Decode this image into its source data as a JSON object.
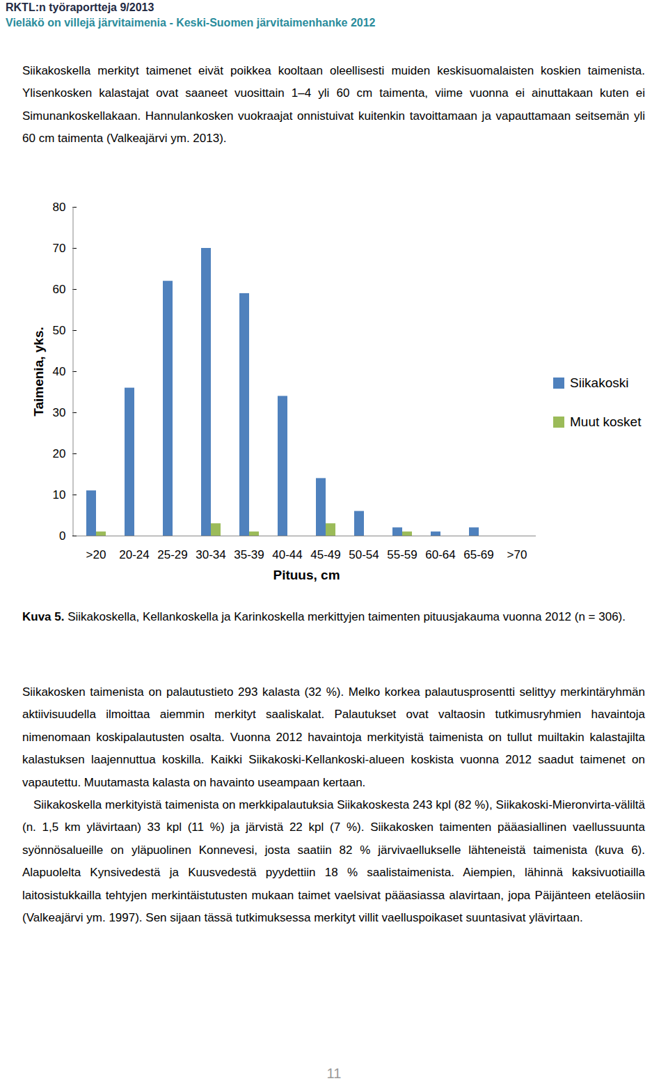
{
  "header": {
    "series": "RKTL:n työraportteja 9/2013",
    "title": "Vieläkö on villejä järvitaimenia - Keski-Suomen järvitaimenhanke 2012"
  },
  "paragraphs_before": [
    "Siikakoskella merkityt taimenet eivät poikkea kooltaan oleellisesti muiden keskisuomalaisten koskien taimenista. Ylisenkosken kalastajat ovat saaneet vuosittain 1–4 yli 60 cm taimenta, viime vuonna ei ainuttakaan kuten ei Simunankoskellakaan. Hannulankosken vuokraajat onnistuivat kuitenkin tavoittamaan ja vapauttamaan seitsemän yli 60 cm taimenta (Valkeajärvi ym. 2013)."
  ],
  "chart_data": {
    "type": "bar",
    "categories": [
      ">20",
      "20-24",
      "25-29",
      "30-34",
      "35-39",
      "40-44",
      "45-49",
      "50-54",
      "55-59",
      "60-64",
      "65-69",
      ">70"
    ],
    "series": [
      {
        "name": "Siikakoski",
        "color": "#4f81bd",
        "values": [
          11,
          36,
          62,
          70,
          59,
          34,
          14,
          6,
          2,
          1,
          2,
          0
        ]
      },
      {
        "name": "Muut kosket",
        "color": "#9bbb59",
        "values": [
          1,
          0,
          0,
          3,
          1,
          0,
          3,
          0,
          1,
          0,
          0,
          0
        ]
      }
    ],
    "x_label": "Pituus, cm",
    "y_label": "Taimenia, yks.",
    "ylim": [
      0,
      80
    ],
    "yticks": [
      0,
      10,
      20,
      30,
      40,
      50,
      60,
      70,
      80
    ],
    "grid": false,
    "legend": "right"
  },
  "caption": {
    "label": "Kuva 5.",
    "text": "Siikakoskella, Kellankoskella ja Karinkoskella merkittyjen taimenten pituusjakauma vuonna 2012 (n = 306)."
  },
  "paragraphs_after": [
    "Siikakosken taimenista on palautustieto 293 kalasta (32 %). Melko korkea palautusprosentti selittyy merkintäryhmän aktiivisuudella ilmoittaa aiemmin merkityt saaliskalat. Palautukset ovat valtaosin tutkimusryhmien havaintoja nimenomaan koskipalautusten osalta. Vuonna 2012 havaintoja merkityistä taimenista on tullut muiltakin kalastajilta kalastuksen laajennuttua koskilla. Kaikki Siikakoski-Kellankoski-alueen koskista vuonna 2012 saadut taimenet on vapautettu. Muutamasta kalasta on havainto useampaan kertaan.",
    "Siikakoskella merkityistä taimenista on merkkipalautuksia Siikakoskesta 243 kpl (82 %), Siikakoski-Mieronvirta-väliltä (n. 1,5 km ylävirtaan) 33 kpl (11 %) ja järvistä 22 kpl (7 %). Siikakosken taimenten pääasiallinen vaellussuunta syönnösalueille on yläpuolinen Konnevesi, josta saatiin 82 % järvivaellukselle lähteneistä taimenista (kuva 6). Alapuolelta Kynsivedestä ja Kuusvedestä pyydettiin 18 % saalistaimenista. Aiempien, lähinnä kaksivuotiailla laitosistukkailla tehtyjen merkintäistutusten mukaan taimet vaelsivat pääasiassa alavirtaan, jopa Päijänteen eteläosiin (Valkeajärvi ym. 1997). Sen sijaan tässä tutkimuksessa merkityt villit vaelluspoikaset suuntasivat ylävirtaan."
  ],
  "page_number": "11"
}
